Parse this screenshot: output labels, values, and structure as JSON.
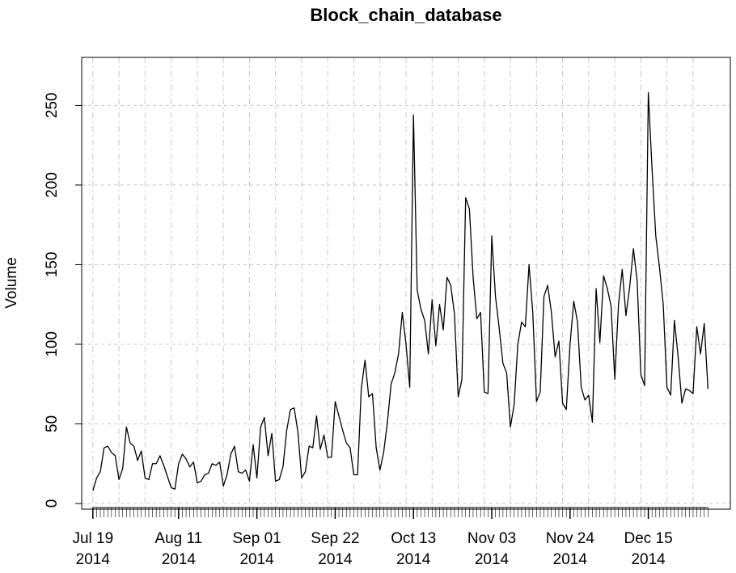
{
  "chart_data": {
    "type": "line",
    "title": "Block_chain_database",
    "xlabel": "",
    "ylabel": "Volume",
    "ylim": [
      0,
      270
    ],
    "xlim": [
      "2014-07-16",
      "2015-01-06"
    ],
    "grid": true,
    "y_ticks": [
      0,
      50,
      100,
      150,
      200,
      250
    ],
    "x_ticks": [
      {
        "date": "2014-07-19",
        "label_line1": "Jul 19",
        "label_line2": "2014"
      },
      {
        "date": "2014-08-11",
        "label_line1": "Aug 11",
        "label_line2": "2014"
      },
      {
        "date": "2014-09-01",
        "label_line1": "Sep 01",
        "label_line2": "2014"
      },
      {
        "date": "2014-09-22",
        "label_line1": "Sep 22",
        "label_line2": "2014"
      },
      {
        "date": "2014-10-13",
        "label_line1": "Oct 13",
        "label_line2": "2014"
      },
      {
        "date": "2014-11-03",
        "label_line1": "Nov 03",
        "label_line2": "2014"
      },
      {
        "date": "2014-11-24",
        "label_line1": "Nov 24",
        "label_line2": "2014"
      },
      {
        "date": "2014-12-15",
        "label_line1": "Dec 15",
        "label_line2": "2014"
      }
    ],
    "series": [
      {
        "x": [
          "2014-07-19",
          "2014-07-20",
          "2014-07-21",
          "2014-07-22",
          "2014-07-23",
          "2014-07-24",
          "2014-07-25",
          "2014-07-26",
          "2014-07-27",
          "2014-07-28",
          "2014-07-29",
          "2014-07-30",
          "2014-07-31",
          "2014-08-01",
          "2014-08-02",
          "2014-08-03",
          "2014-08-04",
          "2014-08-05",
          "2014-08-06",
          "2014-08-07",
          "2014-08-08",
          "2014-08-09",
          "2014-08-10",
          "2014-08-11",
          "2014-08-12",
          "2014-08-13",
          "2014-08-14",
          "2014-08-15",
          "2014-08-16",
          "2014-08-17",
          "2014-08-18",
          "2014-08-19",
          "2014-08-20",
          "2014-08-21",
          "2014-08-22",
          "2014-08-23",
          "2014-08-24",
          "2014-08-25",
          "2014-08-26",
          "2014-08-27",
          "2014-08-28",
          "2014-08-29",
          "2014-08-30",
          "2014-08-31",
          "2014-09-01",
          "2014-09-02",
          "2014-09-03",
          "2014-09-04",
          "2014-09-05",
          "2014-09-06",
          "2014-09-07",
          "2014-09-08",
          "2014-09-09",
          "2014-09-10",
          "2014-09-11",
          "2014-09-12",
          "2014-09-13",
          "2014-09-14",
          "2014-09-15",
          "2014-09-16",
          "2014-09-17",
          "2014-09-18",
          "2014-09-19",
          "2014-09-20",
          "2014-09-21",
          "2014-09-22",
          "2014-09-23",
          "2014-09-24",
          "2014-09-25",
          "2014-09-26",
          "2014-09-27",
          "2014-09-28",
          "2014-09-29",
          "2014-09-30",
          "2014-10-01",
          "2014-10-02",
          "2014-10-03",
          "2014-10-04",
          "2014-10-05",
          "2014-10-06",
          "2014-10-07",
          "2014-10-08",
          "2014-10-09",
          "2014-10-10",
          "2014-10-11",
          "2014-10-12",
          "2014-10-13",
          "2014-10-14",
          "2014-10-15",
          "2014-10-16",
          "2014-10-17",
          "2014-10-18",
          "2014-10-19",
          "2014-10-20",
          "2014-10-21",
          "2014-10-22",
          "2014-10-23",
          "2014-10-24",
          "2014-10-25",
          "2014-10-26",
          "2014-10-27",
          "2014-10-28",
          "2014-10-29",
          "2014-10-30",
          "2014-10-31",
          "2014-11-01",
          "2014-11-02",
          "2014-11-03",
          "2014-11-04",
          "2014-11-05",
          "2014-11-06",
          "2014-11-07",
          "2014-11-08",
          "2014-11-09",
          "2014-11-10",
          "2014-11-11",
          "2014-11-12",
          "2014-11-13",
          "2014-11-14",
          "2014-11-15",
          "2014-11-16",
          "2014-11-17",
          "2014-11-18",
          "2014-11-19",
          "2014-11-20",
          "2014-11-21",
          "2014-11-22",
          "2014-11-23",
          "2014-11-24",
          "2014-11-25",
          "2014-11-26",
          "2014-11-27",
          "2014-11-28",
          "2014-11-29",
          "2014-11-30",
          "2014-12-01",
          "2014-12-02",
          "2014-12-03",
          "2014-12-04",
          "2014-12-05",
          "2014-12-06",
          "2014-12-07",
          "2014-12-08",
          "2014-12-09",
          "2014-12-10",
          "2014-12-11",
          "2014-12-12",
          "2014-12-13",
          "2014-12-14",
          "2014-12-15",
          "2014-12-16",
          "2014-12-17",
          "2014-12-18",
          "2014-12-19",
          "2014-12-20",
          "2014-12-21",
          "2014-12-22",
          "2014-12-23",
          "2014-12-24",
          "2014-12-25",
          "2014-12-26",
          "2014-12-27",
          "2014-12-28",
          "2014-12-29",
          "2014-12-30",
          "2014-12-31"
        ],
        "y": [
          8,
          16,
          20,
          35,
          36,
          32,
          30,
          15,
          22,
          48,
          38,
          36,
          27,
          33,
          16,
          15,
          25,
          25,
          30,
          24,
          17,
          10,
          9,
          25,
          31,
          28,
          23,
          26,
          13,
          14,
          18,
          19,
          25,
          24,
          26,
          11,
          18,
          31,
          36,
          20,
          19,
          21,
          14,
          37,
          16,
          48,
          54,
          30,
          44,
          14,
          15,
          23,
          46,
          59,
          60,
          45,
          16,
          20,
          36,
          35,
          55,
          34,
          43,
          29,
          29,
          64,
          55,
          46,
          38,
          35,
          18,
          18,
          72,
          90,
          67,
          69,
          35,
          21,
          32,
          51,
          75,
          82,
          94,
          120,
          100,
          73,
          244,
          134,
          122,
          115,
          94,
          128,
          99,
          125,
          109,
          142,
          137,
          119,
          67,
          78,
          192,
          185,
          142,
          116,
          120,
          70,
          69,
          168,
          130,
          110,
          88,
          82,
          48,
          62,
          100,
          114,
          111,
          150,
          120,
          64,
          70,
          130,
          137,
          120,
          92,
          102,
          63,
          59,
          100,
          127,
          114,
          73,
          65,
          68,
          51,
          135,
          101,
          143,
          135,
          124,
          78,
          125,
          147,
          118,
          136,
          160,
          140,
          81,
          74,
          258,
          210,
          168,
          148,
          125,
          73,
          68,
          115,
          92,
          63,
          72,
          71,
          69,
          111,
          94,
          113,
          72
        ]
      }
    ]
  }
}
